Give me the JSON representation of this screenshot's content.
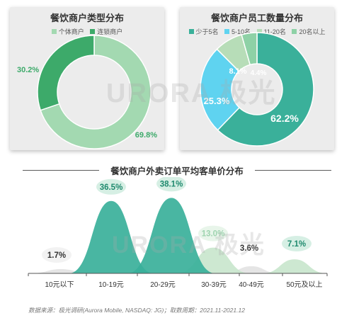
{
  "colors": {
    "green_dark": "#3daa6a",
    "green_light": "#a3d9b1",
    "teal": "#3ab09a",
    "cyan": "#5fd3f0",
    "pale_green": "#b7ddb8",
    "mint": "#8ed1a6",
    "curve_light": "#c9e6cd",
    "curve_gray": "#e3e3e3"
  },
  "watermark": {
    "brand": "URORA",
    "chinese": "极光"
  },
  "left_panel": {
    "title": "餐饮商户类型分布",
    "legend": [
      {
        "label": "个体商户",
        "color": "#a3d9b1"
      },
      {
        "label": "连锁商户",
        "color": "#3daa6a"
      }
    ]
  },
  "right_panel": {
    "title": "餐饮商户员工数量分布",
    "legend": [
      {
        "label": "少于5名",
        "color": "#3ab09a"
      },
      {
        "label": "5-10名",
        "color": "#5fd3f0"
      },
      {
        "label": "11-20名",
        "color": "#b7ddb8"
      },
      {
        "label": "20名以上",
        "color": "#8ed1a6"
      }
    ]
  },
  "bottom": {
    "title": "餐饮商户外卖订单平均客单价分布",
    "source": "数据来源：极光调研(Aurora Mobile, NASDAQ: JG)；取数周期：2021.11-2021.12"
  },
  "chart_data": [
    {
      "type": "pie",
      "title": "餐饮商户类型分布",
      "categories": [
        "个体商户",
        "连锁商户"
      ],
      "values": [
        69.8,
        30.2
      ],
      "value_labels": [
        "69.8%",
        "30.2%"
      ],
      "colors": [
        "#a3d9b1",
        "#3daa6a"
      ],
      "style": "donut",
      "legend": "top"
    },
    {
      "type": "pie",
      "title": "餐饮商户员工数量分布",
      "categories": [
        "少于5名",
        "5-10名",
        "11-20名",
        "20名以上"
      ],
      "values": [
        62.2,
        25.3,
        8.1,
        4.4
      ],
      "value_labels": [
        "62.2%",
        "25.3%",
        "8.1%",
        "4.4%"
      ],
      "colors": [
        "#3ab09a",
        "#5fd3f0",
        "#b7ddb8",
        "#8ed1a6"
      ],
      "style": "donut",
      "legend": "top"
    },
    {
      "type": "area",
      "title": "餐饮商户外卖订单平均客单价分布",
      "categories": [
        "10元以下",
        "10-19元",
        "20-29元",
        "30-39元",
        "40-49元",
        "50元及以上"
      ],
      "values": [
        1.7,
        36.5,
        38.1,
        13.0,
        3.6,
        7.1
      ],
      "value_labels": [
        "1.7%",
        "36.5%",
        "38.1%",
        "13.0%",
        "3.6%",
        "7.1%"
      ],
      "colors": [
        "#e3e3e3",
        "#3ab09a",
        "#3ab09a",
        "#c9e6cd",
        "#e3e3e3",
        "#c9e6cd"
      ],
      "label_bubble": [
        "gray",
        "teal",
        "teal",
        "light",
        "none",
        "teal"
      ],
      "ylim": [
        0,
        40
      ],
      "grid": false
    }
  ]
}
